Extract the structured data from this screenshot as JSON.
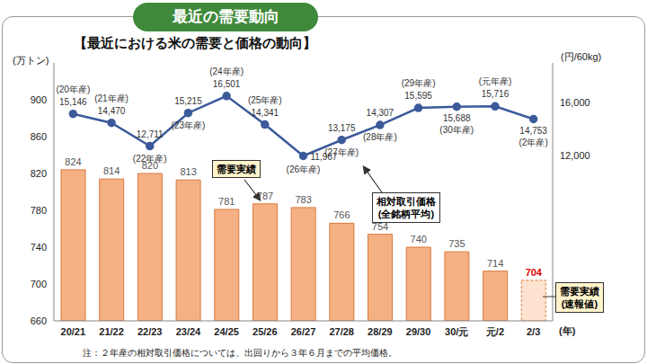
{
  "title": "最近の需要動向",
  "subtitle": "【最近における米の需要と価格の動向】",
  "note": "注：２年産の相対取引価格については、出回りから３年６月までの平均価格。",
  "chart_data": {
    "type": "bar",
    "categories": [
      "20/21",
      "21/22",
      "22/23",
      "23/24",
      "24/25",
      "25/26",
      "26/27",
      "27/28",
      "28/29",
      "29/30",
      "30/元",
      "元/2",
      "2/3"
    ],
    "x_label": "(年)",
    "y_label": "(万トン)",
    "y2_label": "(円/60kg)",
    "ylim": [
      660,
      940
    ],
    "yticks": [
      660,
      700,
      740,
      780,
      820,
      860,
      900
    ],
    "y2lim": [
      -500,
      19000
    ],
    "y2ticks": [
      {
        "value": 12000,
        "label": "12,000"
      },
      {
        "value": 16000,
        "label": "16,000"
      }
    ],
    "grid": false,
    "annotations": [
      [
        "需要実績"
      ],
      [
        "相対取引価格",
        "(全銘柄平均)"
      ],
      [
        "需要実績",
        "(速報値)"
      ]
    ],
    "series": [
      {
        "name": "需要実績",
        "type": "bar",
        "axis": "y",
        "color": "#f5b183",
        "colors": [
          "#f5b183",
          "#f5b183",
          "#f5b183",
          "#f5b183",
          "#f5b183",
          "#f5b183",
          "#f5b183",
          "#f5b183",
          "#f5b183",
          "#f5b183",
          "#f5b183",
          "#f5b183",
          "#fde3d0"
        ],
        "data_labels": true,
        "values": [
          824,
          814,
          820,
          813,
          781,
          787,
          783,
          766,
          754,
          740,
          735,
          714,
          704
        ]
      },
      {
        "name": "相対取引価格",
        "type": "line",
        "axis": "y2",
        "color": "#3b5a9a",
        "marker": "circle",
        "data_labels": true,
        "values": [
          15146,
          14470,
          12711,
          15215,
          16501,
          14341,
          11967,
          13175,
          14307,
          15595,
          15688,
          15716,
          14753
        ],
        "value_labels": [
          "15,146",
          "14,470",
          "12,711",
          "15,215",
          "16,501",
          "14,341",
          "11,967",
          "13,175",
          "14,307",
          "15,595",
          "15,688",
          "15,716",
          "14,753"
        ],
        "point_labels": [
          "(20年産)",
          "(21年産)",
          "(22年産)",
          "(23年産)",
          "(24年産)",
          "(25年産)",
          "(26年産)",
          "(27年産)",
          "(28年産)",
          "(29年産)",
          "(30年産)",
          "(元年産)",
          "(2年産)"
        ]
      }
    ]
  }
}
